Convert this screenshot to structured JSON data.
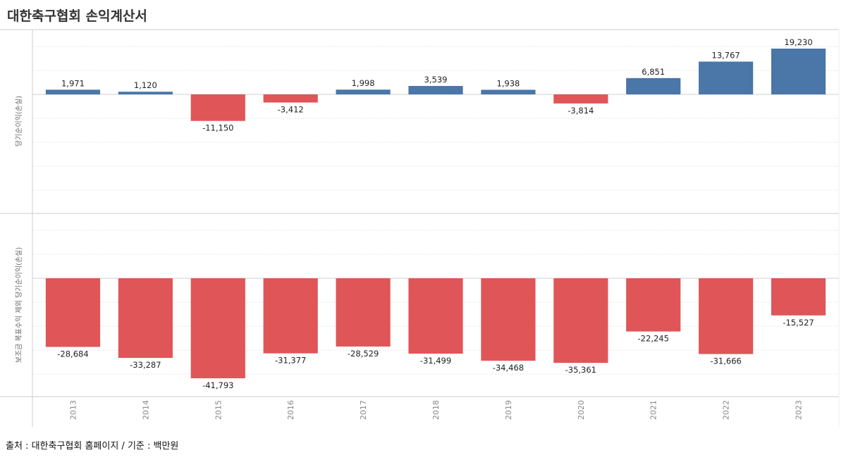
{
  "title": "대한축구협회 손익계산서",
  "source": "출처 : 대한축구협회 홈페이지 / 기준 : 백만원",
  "colors": {
    "positive": "#4a76a8",
    "negative": "#e05558",
    "grid": "#e6e6e6",
    "axis": "#cccccc"
  },
  "chart_data": [
    {
      "type": "bar",
      "ylabel": "당기순이익(손실)",
      "categories": [
        "2013",
        "2014",
        "2015",
        "2016",
        "2017",
        "2018",
        "2019",
        "2020",
        "2021",
        "2022",
        "2023"
      ],
      "values": [
        1971,
        1120,
        -11150,
        -3412,
        1998,
        3539,
        1938,
        -3814,
        6851,
        13767,
        19230
      ],
      "value_labels": [
        "1,971",
        "1,120",
        "-11,150",
        "-3,412",
        "1,998",
        "3,539",
        "1,938",
        "-3,814",
        "6,851",
        "13,767",
        "19,230"
      ],
      "ylim": [
        -45000,
        25000
      ]
    },
    {
      "type": "bar",
      "ylabel": "보조금 복표수익 제외 당기순이익(손실)",
      "categories": [
        "2013",
        "2014",
        "2015",
        "2016",
        "2017",
        "2018",
        "2019",
        "2020",
        "2021",
        "2022",
        "2023"
      ],
      "values": [
        -28684,
        -33287,
        -41793,
        -31377,
        -28529,
        -31499,
        -34468,
        -35361,
        -22245,
        -31666,
        -15527
      ],
      "value_labels": [
        "-28,684",
        "-33,287",
        "-41,793",
        "-31,377",
        "-28,529",
        "-31,499",
        "-34,468",
        "-35,361",
        "-22,245",
        "-31,666",
        "-15,527"
      ],
      "ylim": [
        -50000,
        25000
      ]
    }
  ]
}
